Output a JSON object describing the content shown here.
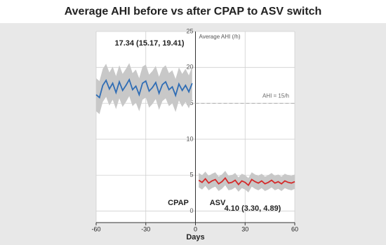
{
  "chart_data": {
    "type": "line",
    "title": "Average AHI before vs after CPAP to ASV switch",
    "xlabel": "Days",
    "ylabel": "Average AHI (/h)",
    "xlim": [
      -60,
      60
    ],
    "xticks": [
      -60,
      -30,
      0,
      30,
      60
    ],
    "ylim": [
      -1.6,
      25
    ],
    "yticks": [
      0,
      5,
      10,
      15,
      20,
      25
    ],
    "grid": true,
    "band_color": "#c8c8c8",
    "hline": {
      "y": 15,
      "x": [
        0,
        60
      ],
      "label": "AHI = 15/h",
      "color": "#aaaaaa"
    },
    "annotations": [
      "17.34 (15.17, 19.41)",
      "CPAP",
      "ASV",
      "4.10 (3.30, 4.89)"
    ],
    "series": [
      {
        "name": "CPAP",
        "color": "#2f6db5",
        "x": [
          -60,
          -58,
          -56,
          -54,
          -52,
          -50,
          -48,
          -46,
          -44,
          -42,
          -40,
          -38,
          -36,
          -34,
          -32,
          -30,
          -28,
          -26,
          -24,
          -22,
          -20,
          -18,
          -16,
          -14,
          -12,
          -10,
          -8,
          -6,
          -4,
          -2
        ],
        "values": [
          16.2,
          15.8,
          17.5,
          18.2,
          17.0,
          17.8,
          16.5,
          18.0,
          16.8,
          17.5,
          18.3,
          16.9,
          17.4,
          16.2,
          17.8,
          18.1,
          16.7,
          17.2,
          17.9,
          16.4,
          17.6,
          18.0,
          16.9,
          17.3,
          16.1,
          17.7,
          16.8,
          17.5,
          16.6,
          17.8
        ],
        "lower": [
          13.9,
          13.5,
          15.2,
          15.9,
          14.7,
          15.5,
          14.2,
          15.7,
          14.5,
          15.2,
          16.0,
          14.6,
          15.1,
          13.9,
          15.5,
          15.8,
          14.4,
          14.9,
          15.6,
          14.1,
          15.3,
          15.7,
          14.6,
          15.0,
          13.8,
          15.4,
          14.5,
          15.2,
          14.3,
          15.5
        ],
        "upper": [
          18.5,
          18.1,
          19.8,
          20.5,
          19.3,
          20.1,
          18.8,
          20.3,
          19.1,
          19.8,
          20.6,
          19.2,
          19.7,
          18.5,
          20.1,
          20.4,
          19.0,
          19.5,
          20.2,
          18.7,
          19.9,
          20.3,
          19.2,
          19.6,
          18.4,
          20.0,
          19.1,
          19.8,
          18.9,
          20.1
        ]
      },
      {
        "name": "ASV",
        "color": "#d42a2a",
        "x": [
          2,
          4,
          6,
          8,
          10,
          12,
          14,
          16,
          18,
          20,
          22,
          24,
          26,
          28,
          30,
          32,
          34,
          36,
          38,
          40,
          42,
          44,
          46,
          48,
          50,
          52,
          54,
          56,
          58,
          60
        ],
        "values": [
          4.3,
          4.0,
          4.5,
          3.9,
          4.2,
          4.4,
          3.8,
          4.1,
          4.6,
          3.9,
          4.0,
          4.3,
          3.7,
          4.2,
          4.0,
          3.6,
          4.4,
          4.1,
          3.9,
          4.2,
          3.8,
          4.0,
          4.3,
          3.9,
          4.1,
          3.8,
          4.2,
          4.0,
          3.9,
          4.1
        ],
        "lower": [
          3.3,
          3.0,
          3.5,
          2.9,
          3.2,
          3.4,
          2.8,
          3.1,
          3.6,
          2.9,
          3.0,
          3.3,
          2.7,
          3.2,
          3.0,
          2.6,
          3.4,
          3.1,
          2.9,
          3.2,
          2.8,
          3.0,
          3.3,
          2.9,
          3.1,
          2.8,
          3.2,
          3.0,
          2.9,
          3.1
        ],
        "upper": [
          5.3,
          5.0,
          5.5,
          4.9,
          5.2,
          5.4,
          4.8,
          5.1,
          5.6,
          4.9,
          5.0,
          5.3,
          4.7,
          5.2,
          5.0,
          4.6,
          5.4,
          5.1,
          4.9,
          5.2,
          4.8,
          5.0,
          5.3,
          4.9,
          5.1,
          4.8,
          5.2,
          5.0,
          4.9,
          5.1
        ]
      }
    ]
  }
}
